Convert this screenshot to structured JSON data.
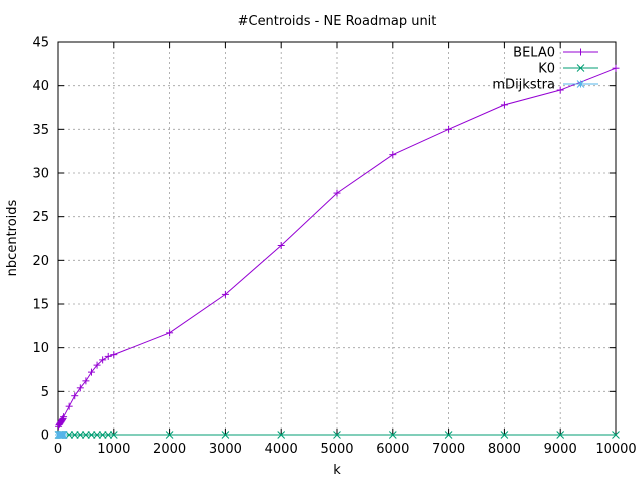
{
  "chart_data": {
    "type": "line",
    "title": "#Centroids - NE Roadmap unit",
    "xlabel": "k",
    "ylabel": "nbcentroids",
    "xlim": [
      0,
      10000
    ],
    "ylim": [
      0,
      45
    ],
    "x_ticks": [
      0,
      1000,
      2000,
      3000,
      4000,
      5000,
      6000,
      7000,
      8000,
      9000,
      10000
    ],
    "y_ticks": [
      0,
      5,
      10,
      15,
      20,
      25,
      30,
      35,
      40,
      45
    ],
    "grid": true,
    "legend_position": "top-right",
    "series": [
      {
        "name": "BELA0",
        "color": "#9400d3",
        "marker": "plus",
        "points": [
          [
            10,
            1.0
          ],
          [
            20,
            1.2
          ],
          [
            30,
            1.3
          ],
          [
            40,
            1.4
          ],
          [
            50,
            1.5
          ],
          [
            60,
            1.6
          ],
          [
            70,
            1.7
          ],
          [
            80,
            1.8
          ],
          [
            90,
            1.9
          ],
          [
            100,
            2.1
          ],
          [
            200,
            3.3
          ],
          [
            300,
            4.5
          ],
          [
            400,
            5.4
          ],
          [
            500,
            6.2
          ],
          [
            600,
            7.2
          ],
          [
            700,
            8.0
          ],
          [
            800,
            8.6
          ],
          [
            900,
            9.0
          ],
          [
            1000,
            9.2
          ],
          [
            2000,
            11.7
          ],
          [
            3000,
            16.1
          ],
          [
            4000,
            21.7
          ],
          [
            5000,
            27.7
          ],
          [
            6000,
            32.1
          ],
          [
            7000,
            35.0
          ],
          [
            8000,
            37.8
          ],
          [
            9000,
            39.5
          ],
          [
            10000,
            42.0
          ]
        ]
      },
      {
        "name": "K0",
        "color": "#009e73",
        "marker": "x",
        "points": [
          [
            10,
            0
          ],
          [
            20,
            0
          ],
          [
            30,
            0
          ],
          [
            40,
            0
          ],
          [
            50,
            0
          ],
          [
            60,
            0
          ],
          [
            70,
            0
          ],
          [
            80,
            0
          ],
          [
            90,
            0
          ],
          [
            100,
            0
          ],
          [
            200,
            0
          ],
          [
            300,
            0
          ],
          [
            400,
            0
          ],
          [
            500,
            0
          ],
          [
            600,
            0
          ],
          [
            700,
            0
          ],
          [
            800,
            0
          ],
          [
            900,
            0
          ],
          [
            1000,
            0
          ],
          [
            2000,
            0
          ],
          [
            3000,
            0
          ],
          [
            4000,
            0
          ],
          [
            5000,
            0
          ],
          [
            6000,
            0
          ],
          [
            7000,
            0
          ],
          [
            8000,
            0
          ],
          [
            9000,
            0
          ],
          [
            10000,
            0
          ]
        ]
      },
      {
        "name": "mDijkstra",
        "color": "#56b4e9",
        "marker": "star",
        "points": [
          [
            10,
            0
          ],
          [
            20,
            0
          ],
          [
            30,
            0
          ],
          [
            40,
            0
          ],
          [
            50,
            0
          ],
          [
            60,
            0
          ],
          [
            70,
            0
          ],
          [
            80,
            0
          ],
          [
            90,
            0
          ],
          [
            100,
            0
          ]
        ]
      }
    ]
  }
}
